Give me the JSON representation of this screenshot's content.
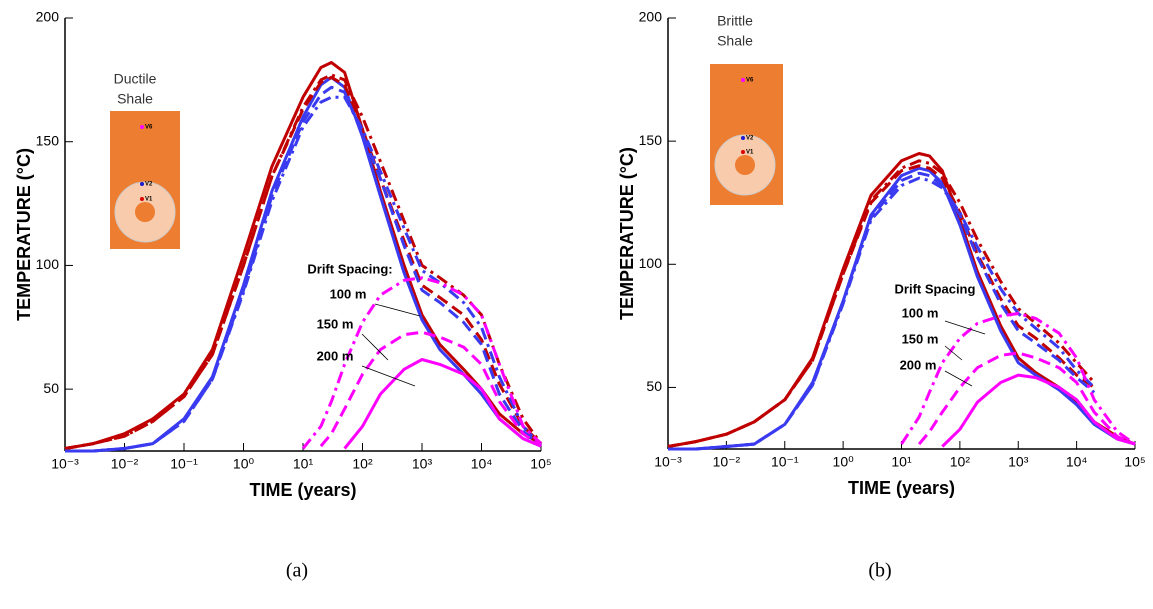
{
  "chart_data": [
    {
      "type": "line",
      "panel_label": "(a)",
      "x_label": "TIME (years)",
      "y_label": "TEMPERATURE (°C)",
      "xscale": "log",
      "xlim": [
        0.001,
        100000
      ],
      "xticks": [
        {
          "value": 0.001,
          "label": "10⁻³"
        },
        {
          "value": 0.01,
          "label": "10⁻²"
        },
        {
          "value": 0.1,
          "label": "10⁻¹"
        },
        {
          "value": 1,
          "label": "10⁰"
        },
        {
          "value": 10,
          "label": "10¹"
        },
        {
          "value": 100,
          "label": "10²"
        },
        {
          "value": 1000,
          "label": "10³"
        },
        {
          "value": 10000,
          "label": "10⁴"
        },
        {
          "value": 100000,
          "label": "10⁵"
        }
      ],
      "ylim": [
        25,
        200
      ],
      "yticks": [
        50,
        100,
        150,
        200
      ],
      "x": [
        0.001,
        0.003,
        0.01,
        0.03,
        0.1,
        0.3,
        1,
        3,
        10,
        20,
        30,
        50,
        100,
        200,
        500,
        1000,
        2000,
        5000,
        10000,
        20000,
        50000,
        100000
      ],
      "series": [
        {
          "color": "#c00000",
          "dash": "solid",
          "values": [
            26,
            28,
            32,
            38,
            48,
            66,
            104,
            140,
            168,
            180,
            182,
            178,
            155,
            130,
            100,
            80,
            68,
            58,
            50,
            40,
            32,
            28
          ]
        },
        {
          "color": "#3a3af0",
          "dash": "solid",
          "values": [
            25,
            25,
            26,
            28,
            38,
            55,
            92,
            130,
            160,
            173,
            176,
            172,
            152,
            128,
            97,
            78,
            66,
            56,
            48,
            38,
            30,
            27
          ]
        },
        {
          "color": "#c00000",
          "dash": "dashdot",
          "values": [
            26,
            28,
            31,
            37,
            47,
            64,
            100,
            136,
            164,
            175,
            177,
            175,
            160,
            142,
            118,
            100,
            95,
            88,
            80,
            60,
            38,
            28
          ]
        },
        {
          "color": "#c00000",
          "dash": "dashed",
          "values": [
            26,
            28,
            31,
            37,
            47,
            64,
            100,
            136,
            163,
            174,
            176,
            173,
            155,
            135,
            110,
            92,
            87,
            80,
            70,
            52,
            35,
            28
          ]
        },
        {
          "color": "#3a3af0",
          "dash": "dashdot",
          "values": [
            25,
            25,
            26,
            28,
            37,
            54,
            89,
            126,
            156,
            166,
            168,
            168,
            155,
            138,
            115,
            98,
            93,
            85,
            75,
            55,
            35,
            27
          ]
        },
        {
          "color": "#3a3af0",
          "dash": "dashed",
          "values": [
            25,
            25,
            26,
            28,
            37,
            54,
            90,
            128,
            158,
            169,
            172,
            170,
            153,
            135,
            108,
            90,
            85,
            77,
            68,
            48,
            33,
            27
          ]
        },
        {
          "color": "#ff00ff",
          "dash": "dashdot",
          "values": [
            null,
            null,
            null,
            null,
            null,
            null,
            null,
            null,
            26,
            35,
            45,
            60,
            77,
            88,
            94,
            95,
            93,
            88,
            80,
            60,
            35,
            28
          ]
        },
        {
          "color": "#ff00ff",
          "dash": "dashed",
          "values": [
            null,
            null,
            null,
            null,
            null,
            null,
            null,
            null,
            null,
            27,
            32,
            42,
            56,
            66,
            72,
            73,
            71,
            67,
            60,
            45,
            32,
            27
          ]
        },
        {
          "color": "#ff00ff",
          "dash": "solid",
          "values": [
            null,
            null,
            null,
            null,
            null,
            null,
            null,
            null,
            null,
            null,
            null,
            26,
            35,
            48,
            58,
            62,
            60,
            56,
            50,
            38,
            30,
            27
          ]
        }
      ],
      "annotations": [
        "Drift Spacing:",
        "100 m",
        "150 m",
        "200 m"
      ],
      "inset": {
        "label": [
          "Ductile",
          "Shale"
        ],
        "points": [
          "V6",
          "V2",
          "V1"
        ]
      }
    },
    {
      "type": "line",
      "panel_label": "(b)",
      "x_label": "TIME (years)",
      "y_label": "TEMPERATURE (°C)",
      "xscale": "log",
      "xlim": [
        0.001,
        100000
      ],
      "xticks": [
        {
          "value": 0.001,
          "label": "10⁻³"
        },
        {
          "value": 0.01,
          "label": "10⁻²"
        },
        {
          "value": 0.1,
          "label": "10⁻¹"
        },
        {
          "value": 1,
          "label": "10⁰"
        },
        {
          "value": 10,
          "label": "10¹"
        },
        {
          "value": 100,
          "label": "10²"
        },
        {
          "value": 1000,
          "label": "10³"
        },
        {
          "value": 10000,
          "label": "10⁴"
        },
        {
          "value": 100000,
          "label": "10⁵"
        }
      ],
      "ylim": [
        25,
        200
      ],
      "yticks": [
        50,
        100,
        150,
        200
      ],
      "x": [
        0.001,
        0.003,
        0.01,
        0.03,
        0.1,
        0.3,
        1,
        3,
        10,
        20,
        30,
        50,
        100,
        200,
        500,
        1000,
        2000,
        5000,
        10000,
        20000,
        50000,
        100000
      ],
      "series": [
        {
          "color": "#c00000",
          "dash": "solid",
          "values": [
            26,
            28,
            31,
            36,
            45,
            62,
            98,
            128,
            142,
            145,
            144,
            138,
            118,
            97,
            75,
            62,
            56,
            50,
            44,
            36,
            30,
            27
          ]
        },
        {
          "color": "#3a3af0",
          "dash": "solid",
          "values": [
            25,
            25,
            26,
            27,
            35,
            52,
            85,
            120,
            136,
            139,
            138,
            133,
            116,
            95,
            73,
            60,
            55,
            49,
            43,
            35,
            29,
            27
          ]
        },
        {
          "color": "#c00000",
          "dash": "dashdot",
          "values": [
            26,
            28,
            31,
            36,
            45,
            61,
            96,
            126,
            139,
            142,
            141,
            137,
            125,
            110,
            93,
            82,
            76,
            68,
            60,
            52,
            null,
            null
          ]
        },
        {
          "color": "#c00000",
          "dash": "dashed",
          "values": [
            26,
            28,
            31,
            36,
            45,
            61,
            96,
            125,
            138,
            140,
            139,
            135,
            121,
            104,
            86,
            75,
            70,
            62,
            55,
            50,
            null,
            null
          ]
        },
        {
          "color": "#3a3af0",
          "dash": "dashdot",
          "values": [
            25,
            25,
            26,
            27,
            35,
            51,
            84,
            118,
            132,
            135,
            134,
            131,
            121,
            107,
            90,
            80,
            74,
            66,
            57,
            50,
            null,
            null
          ]
        },
        {
          "color": "#3a3af0",
          "dash": "dashed",
          "values": [
            25,
            25,
            26,
            27,
            35,
            51,
            85,
            119,
            134,
            137,
            136,
            132,
            120,
            103,
            84,
            73,
            68,
            61,
            54,
            48,
            null,
            null
          ]
        },
        {
          "color": "#ff00ff",
          "dash": "dashdot",
          "values": [
            null,
            null,
            null,
            null,
            null,
            null,
            null,
            null,
            27,
            38,
            48,
            60,
            70,
            76,
            79,
            80,
            78,
            72,
            62,
            45,
            32,
            27
          ]
        },
        {
          "color": "#ff00ff",
          "dash": "dashed",
          "values": [
            null,
            null,
            null,
            null,
            null,
            null,
            null,
            null,
            null,
            27,
            32,
            40,
            50,
            58,
            63,
            64,
            62,
            58,
            52,
            40,
            30,
            27
          ]
        },
        {
          "color": "#ff00ff",
          "dash": "solid",
          "values": [
            null,
            null,
            null,
            null,
            null,
            null,
            null,
            null,
            null,
            null,
            null,
            26,
            33,
            44,
            52,
            55,
            54,
            50,
            45,
            36,
            29,
            27
          ]
        }
      ],
      "annotations": [
        "Drift Spacing",
        "100 m",
        "150 m",
        "200 m"
      ],
      "inset": {
        "label": [
          "Brittle",
          "Shale"
        ],
        "points": [
          "V6",
          "V2",
          "V1"
        ]
      }
    }
  ]
}
